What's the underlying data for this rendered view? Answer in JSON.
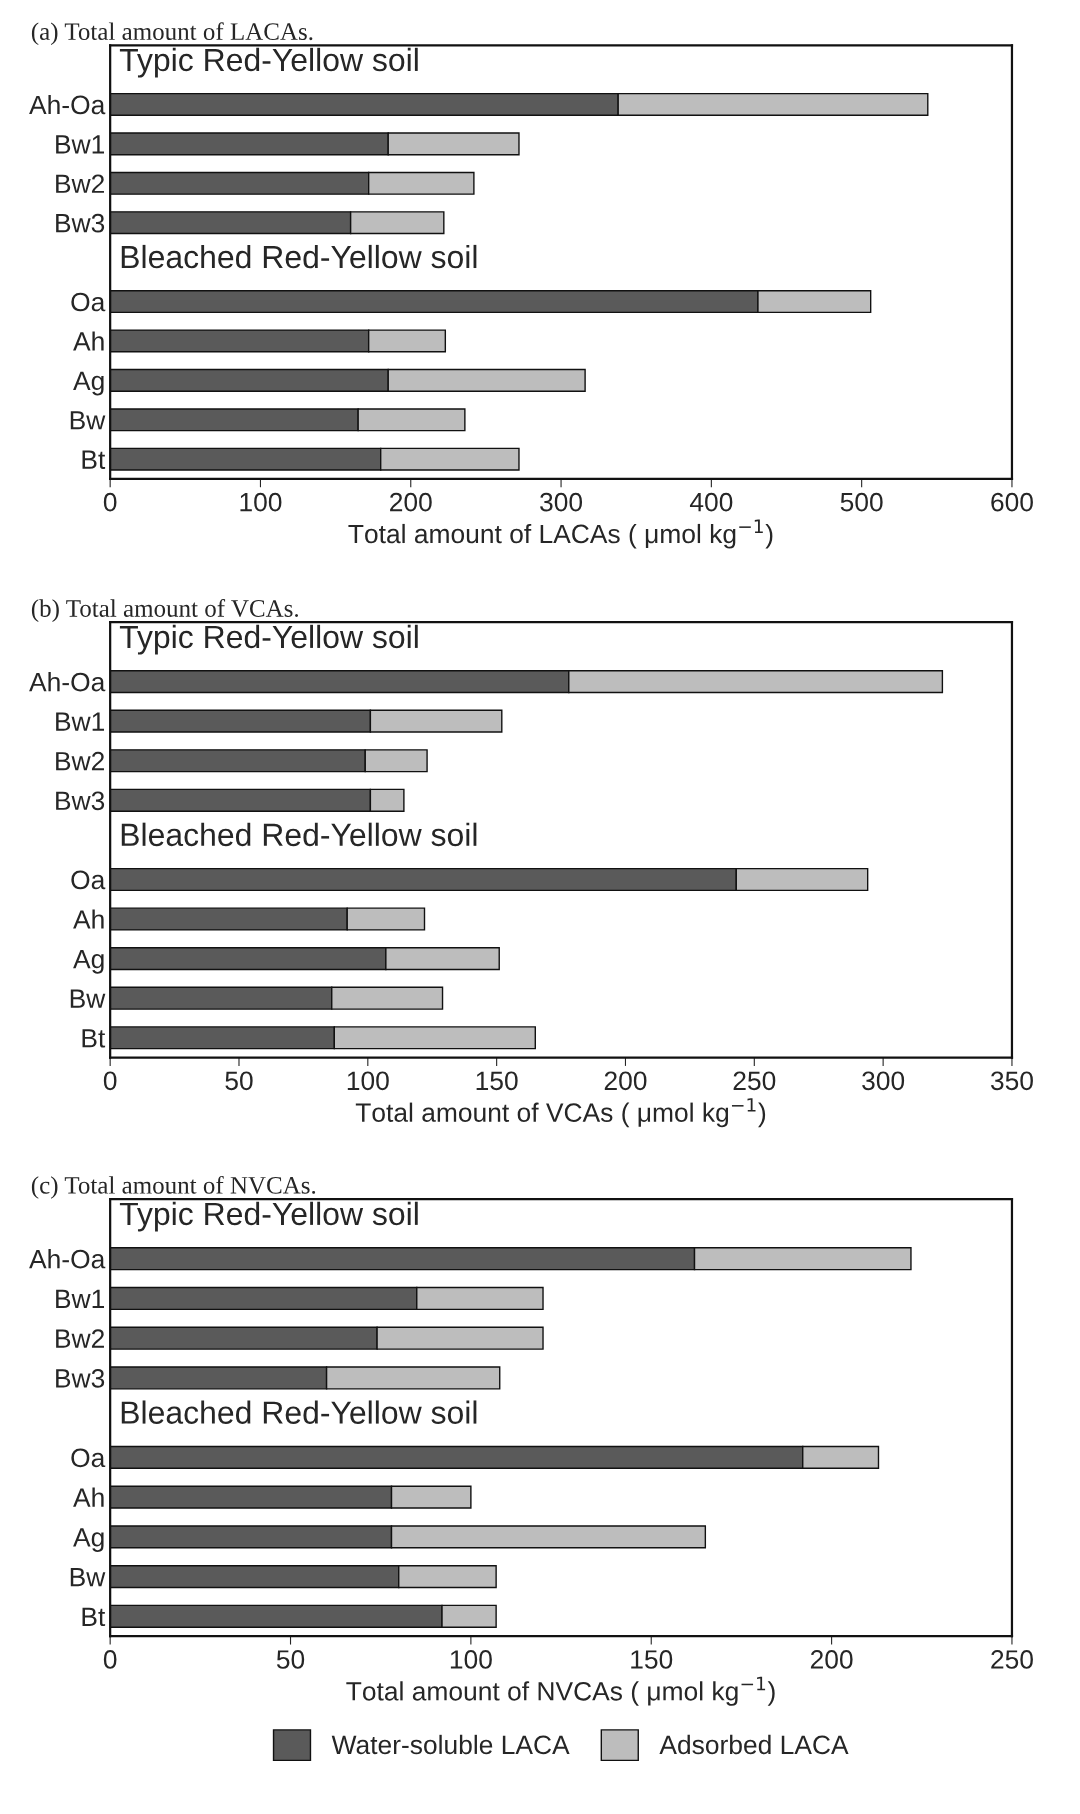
{
  "chart_data": [
    {
      "type": "bar",
      "orientation": "horizontal",
      "stacked": true,
      "title": "(a) Total amount of LACAs.",
      "xlabel": "Total amount of LACAs ( μmol kg$^{−1}$)",
      "categories": [
        null,
        "Ah-Oa",
        "Bw1",
        "Bw2",
        "Bw3",
        null,
        "Oa",
        "Ah",
        "Ag",
        "Bw",
        "Bt"
      ],
      "series": [
        {
          "color": "#5a5a5a",
          "values": [
            null,
            338,
            185,
            172,
            160,
            null,
            431,
            172,
            185,
            165,
            180
          ]
        },
        {
          "color": "#bdbdbd",
          "values": [
            null,
            206,
            87,
            70,
            62,
            null,
            75,
            51,
            131,
            71,
            92
          ]
        }
      ],
      "xlim": [
        0,
        600
      ],
      "xticks": [
        0,
        100,
        200,
        300,
        400,
        500,
        600
      ],
      "annotations": [
        "Typic Red-Yellow soil",
        "Bleached Red-Yellow soil"
      ],
      "legend": false
    },
    {
      "type": "bar",
      "orientation": "horizontal",
      "stacked": true,
      "title": "(b) Total amount of VCAs.",
      "xlabel": "Total amount of VCAs ( μmol kg$^{−1}$)",
      "categories": [
        null,
        "Ah-Oa",
        "Bw1",
        "Bw2",
        "Bw3",
        null,
        "Oa",
        "Ah",
        "Ag",
        "Bw",
        "Bt"
      ],
      "series": [
        {
          "color": "#5a5a5a",
          "values": [
            null,
            178,
            101,
            99,
            101,
            null,
            243,
            92,
            107,
            86,
            87
          ]
        },
        {
          "color": "#bdbdbd",
          "values": [
            null,
            145,
            51,
            24,
            13,
            null,
            51,
            30,
            44,
            43,
            78
          ]
        }
      ],
      "xlim": [
        0,
        350
      ],
      "xticks": [
        0,
        50,
        100,
        150,
        200,
        250,
        300,
        350
      ],
      "annotations": [
        "Typic Red-Yellow soil",
        "Bleached Red-Yellow soil"
      ],
      "legend": false
    },
    {
      "type": "bar",
      "orientation": "horizontal",
      "stacked": true,
      "title": "(c) Total amount of NVCAs.",
      "xlabel": "Total amount of NVCAs ( μmol kg$^{−1}$)",
      "categories": [
        null,
        "Ah-Oa",
        "Bw1",
        "Bw2",
        "Bw3",
        null,
        "Oa",
        "Ah",
        "Ag",
        "Bw",
        "Bt"
      ],
      "series": [
        {
          "name": "Water-soluble LACA",
          "color": "#5a5a5a",
          "values": [
            null,
            162,
            85,
            74,
            60,
            null,
            192,
            78,
            78,
            80,
            92
          ]
        },
        {
          "name": "Adsorbed LACA",
          "color": "#bdbdbd",
          "values": [
            null,
            60,
            35,
            46,
            48,
            null,
            21,
            22,
            87,
            27,
            15
          ]
        }
      ],
      "xlim": [
        0,
        250
      ],
      "xticks": [
        0,
        50,
        100,
        150,
        200,
        250
      ],
      "annotations": [
        "Typic Red-Yellow soil",
        "Bleached Red-Yellow soil"
      ],
      "legend": "bottom"
    }
  ]
}
